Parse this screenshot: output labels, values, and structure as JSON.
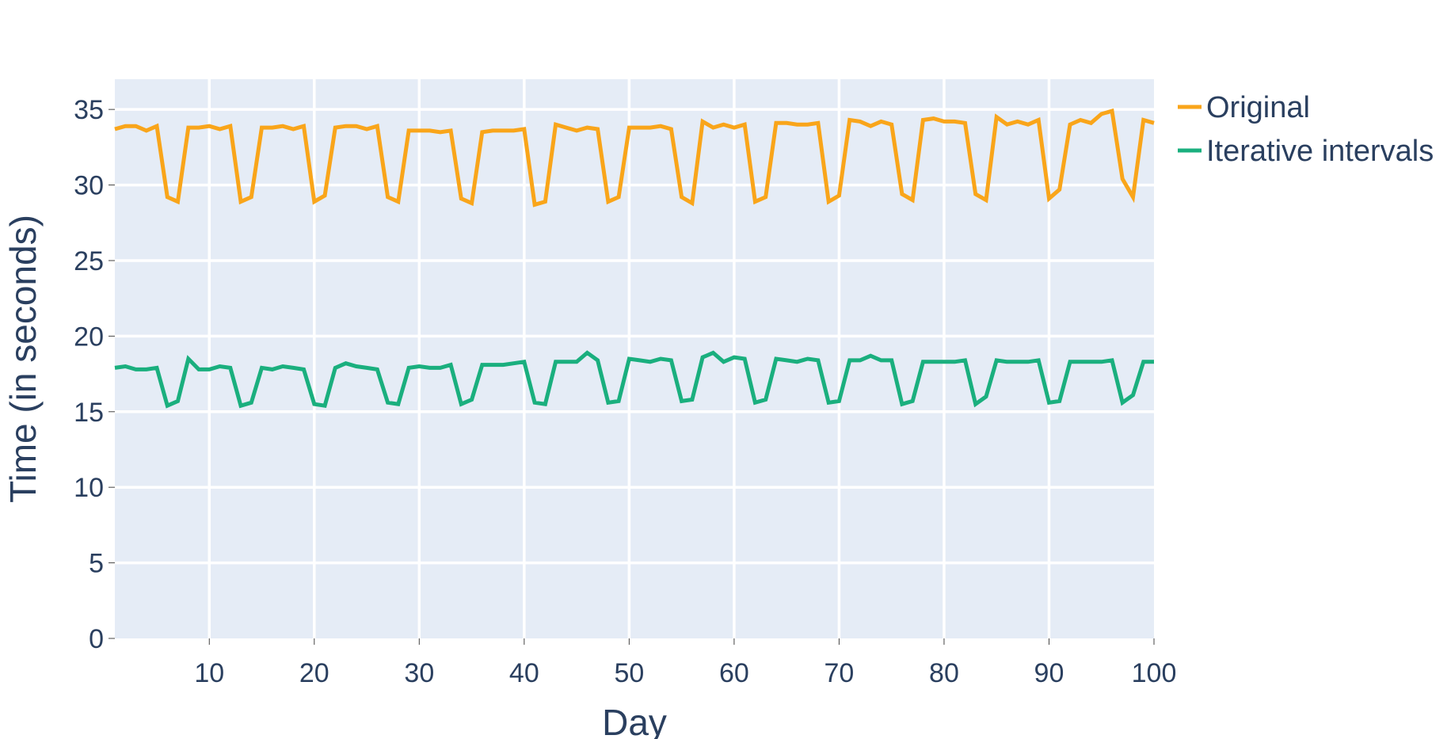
{
  "chart_data": {
    "type": "line",
    "title": "",
    "xlabel": "Day",
    "ylabel": "Time (in seconds)",
    "xlim": [
      1,
      100
    ],
    "ylim": [
      0,
      37
    ],
    "x_ticks": [
      10,
      20,
      30,
      40,
      50,
      60,
      70,
      80,
      90,
      100
    ],
    "y_ticks": [
      0,
      5,
      10,
      15,
      20,
      25,
      30,
      35
    ],
    "grid": true,
    "legend_position": "top-right",
    "plot_background": "#e5ecf6",
    "x": [
      1,
      2,
      3,
      4,
      5,
      6,
      7,
      8,
      9,
      10,
      11,
      12,
      13,
      14,
      15,
      16,
      17,
      18,
      19,
      20,
      21,
      22,
      23,
      24,
      25,
      26,
      27,
      28,
      29,
      30,
      31,
      32,
      33,
      34,
      35,
      36,
      37,
      38,
      39,
      40,
      41,
      42,
      43,
      44,
      45,
      46,
      47,
      48,
      49,
      50,
      51,
      52,
      53,
      54,
      55,
      56,
      57,
      58,
      59,
      60,
      61,
      62,
      63,
      64,
      65,
      66,
      67,
      68,
      69,
      70,
      71,
      72,
      73,
      74,
      75,
      76,
      77,
      78,
      79,
      80,
      81,
      82,
      83,
      84,
      85,
      86,
      87,
      88,
      89,
      90,
      91,
      92,
      93,
      94,
      95,
      96,
      97,
      98,
      99,
      100
    ],
    "series": [
      {
        "name": "Original",
        "color": "#f9a51a",
        "values": [
          33.7,
          33.9,
          33.9,
          33.6,
          33.9,
          29.2,
          28.9,
          33.8,
          33.8,
          33.9,
          33.7,
          33.9,
          28.9,
          29.2,
          33.8,
          33.8,
          33.9,
          33.7,
          33.9,
          28.9,
          29.3,
          33.8,
          33.9,
          33.9,
          33.7,
          33.9,
          29.2,
          28.9,
          33.6,
          33.6,
          33.6,
          33.5,
          33.6,
          29.1,
          28.8,
          33.5,
          33.6,
          33.6,
          33.6,
          33.7,
          28.7,
          28.9,
          34.0,
          33.8,
          33.6,
          33.8,
          33.7,
          28.9,
          29.2,
          33.8,
          33.8,
          33.8,
          33.9,
          33.7,
          29.2,
          28.8,
          34.2,
          33.8,
          34.0,
          33.8,
          34.0,
          28.9,
          29.2,
          34.1,
          34.1,
          34.0,
          34.0,
          34.1,
          28.9,
          29.3,
          34.3,
          34.2,
          33.9,
          34.2,
          34.0,
          29.4,
          29.0,
          34.3,
          34.4,
          34.2,
          34.2,
          34.1,
          29.4,
          29.0,
          34.5,
          34.0,
          34.2,
          34.0,
          34.3,
          29.1,
          29.7,
          34.0,
          34.3,
          34.1,
          34.7,
          34.9,
          30.4,
          29.2,
          34.3,
          34.1
        ]
      },
      {
        "name": "Iterative intervals",
        "color": "#1aaf7e",
        "values": [
          17.9,
          18.0,
          17.8,
          17.8,
          17.9,
          15.4,
          15.7,
          18.5,
          17.8,
          17.8,
          18.0,
          17.9,
          15.4,
          15.6,
          17.9,
          17.8,
          18.0,
          17.9,
          17.8,
          15.5,
          15.4,
          17.9,
          18.2,
          18.0,
          17.9,
          17.8,
          15.6,
          15.5,
          17.9,
          18.0,
          17.9,
          17.9,
          18.1,
          15.5,
          15.8,
          18.1,
          18.1,
          18.1,
          18.2,
          18.3,
          15.6,
          15.5,
          18.3,
          18.3,
          18.3,
          18.9,
          18.4,
          15.6,
          15.7,
          18.5,
          18.4,
          18.3,
          18.5,
          18.4,
          15.7,
          15.8,
          18.6,
          18.9,
          18.3,
          18.6,
          18.5,
          15.6,
          15.8,
          18.5,
          18.4,
          18.3,
          18.5,
          18.4,
          15.6,
          15.7,
          18.4,
          18.4,
          18.7,
          18.4,
          18.4,
          15.5,
          15.7,
          18.3,
          18.3,
          18.3,
          18.3,
          18.4,
          15.5,
          16.0,
          18.4,
          18.3,
          18.3,
          18.3,
          18.4,
          15.6,
          15.7,
          18.3,
          18.3,
          18.3,
          18.3,
          18.4,
          15.6,
          16.1,
          18.3,
          18.3
        ]
      }
    ]
  }
}
